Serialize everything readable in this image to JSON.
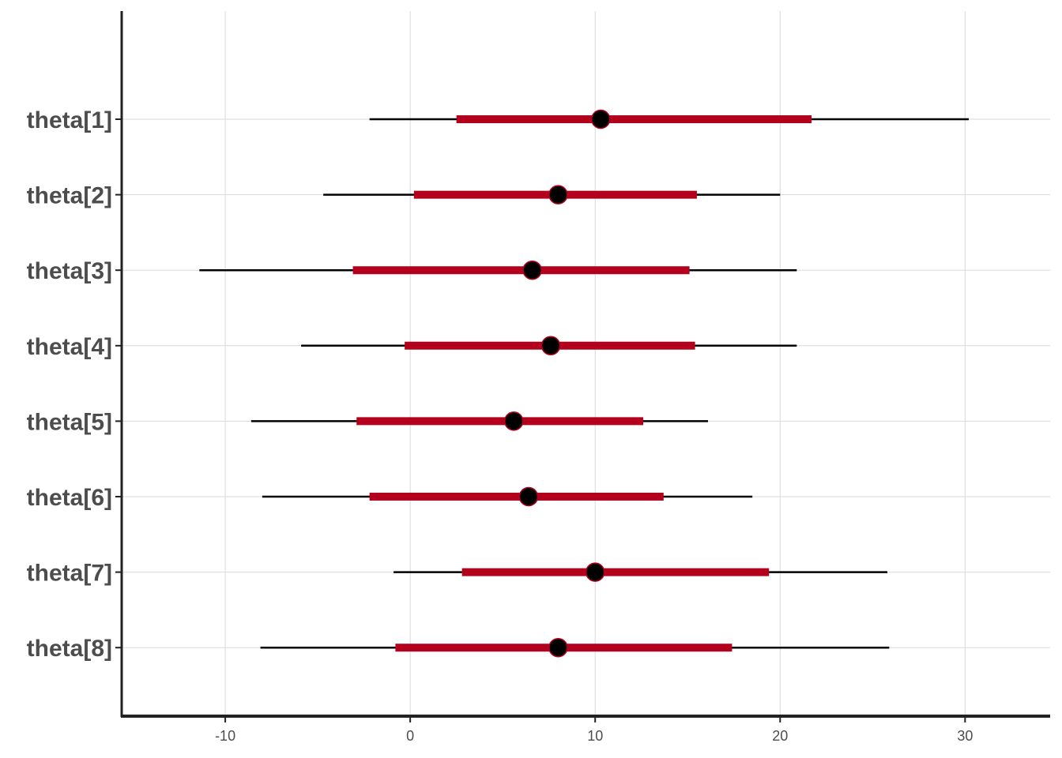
{
  "chart_data": {
    "type": "interval",
    "title": "",
    "xlabel": "",
    "ylabel": "",
    "xlim": [
      -15.6,
      34.6
    ],
    "x_ticks": [
      -10,
      0,
      10,
      20,
      30
    ],
    "x_tick_labels": [
      "-10",
      "0",
      "10",
      "20",
      "30"
    ],
    "grid": true,
    "parameters": [
      {
        "label": "theta[1]",
        "ll": -2.2,
        "l": 2.5,
        "m": 10.3,
        "h": 21.7,
        "hh": 30.2
      },
      {
        "label": "theta[2]",
        "ll": -4.7,
        "l": 0.2,
        "m": 8.0,
        "h": 15.5,
        "hh": 20.0
      },
      {
        "label": "theta[3]",
        "ll": -11.4,
        "l": -3.1,
        "m": 6.6,
        "h": 15.1,
        "hh": 20.9
      },
      {
        "label": "theta[4]",
        "ll": -5.9,
        "l": -0.3,
        "m": 7.6,
        "h": 15.4,
        "hh": 20.9
      },
      {
        "label": "theta[5]",
        "ll": -8.6,
        "l": -2.9,
        "m": 5.6,
        "h": 12.6,
        "hh": 16.1
      },
      {
        "label": "theta[6]",
        "ll": -8.0,
        "l": -2.2,
        "m": 6.4,
        "h": 13.7,
        "hh": 18.5
      },
      {
        "label": "theta[7]",
        "ll": -0.9,
        "l": 2.8,
        "m": 10.0,
        "h": 19.4,
        "hh": 25.8
      },
      {
        "label": "theta[8]",
        "ll": -8.1,
        "l": -0.8,
        "m": 8.0,
        "h": 17.4,
        "hh": 25.9
      }
    ],
    "colors": {
      "inner_interval": "#b2001d",
      "outer_interval": "#000000",
      "point_fill": "#000000",
      "point_stroke": "#b2001d",
      "grid": "#d9d9d9",
      "axis": "#222222"
    }
  }
}
